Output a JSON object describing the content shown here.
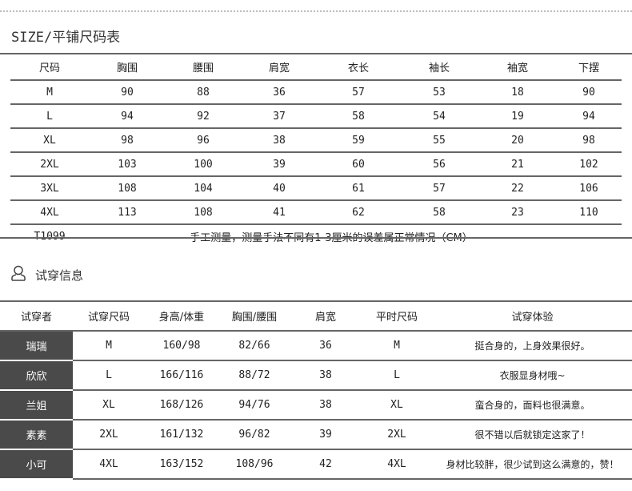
{
  "size_section": {
    "title": "SIZE/平铺尺码表",
    "headers": [
      "尺码",
      "胸围",
      "腰围",
      "肩宽",
      "衣长",
      "袖长",
      "袖宽",
      "下摆"
    ],
    "rows": [
      [
        "M",
        "90",
        "88",
        "36",
        "57",
        "53",
        "18",
        "90"
      ],
      [
        "L",
        "94",
        "92",
        "37",
        "58",
        "54",
        "19",
        "94"
      ],
      [
        "XL",
        "98",
        "96",
        "38",
        "59",
        "55",
        "20",
        "98"
      ],
      [
        "2XL",
        "103",
        "100",
        "39",
        "60",
        "56",
        "21",
        "102"
      ],
      [
        "3XL",
        "108",
        "104",
        "40",
        "61",
        "57",
        "22",
        "106"
      ],
      [
        "4XL",
        "113",
        "108",
        "41",
        "62",
        "58",
        "23",
        "110"
      ]
    ],
    "footer_code": "T1099",
    "footer_note": "手工测量，测量手法不同有1-3厘米的误差属正常情况（CM）"
  },
  "fit_section": {
    "title": "试穿信息",
    "icon": "user-icon",
    "headers": [
      "试穿者",
      "试穿尺码",
      "身高/体重",
      "胸围/腰围",
      "肩宽",
      "平时尺码",
      "试穿体验"
    ],
    "rows": [
      [
        "瑞瑞",
        "M",
        "160/98",
        "82/66",
        "36",
        "M",
        "挺合身的，上身效果很好。"
      ],
      [
        "欣欣",
        "L",
        "166/116",
        "88/72",
        "38",
        "L",
        "衣服显身材哦~"
      ],
      [
        "兰姐",
        "XL",
        "168/126",
        "94/76",
        "38",
        "XL",
        "蛮合身的，面料也很满意。"
      ],
      [
        "素素",
        "2XL",
        "161/132",
        "96/82",
        "39",
        "2XL",
        "很不错以后就锁定这家了！"
      ],
      [
        "小可",
        "4XL",
        "163/152",
        "108/96",
        "42",
        "4XL",
        "身材比较胖，很少试到这么满意的，赞！"
      ]
    ]
  }
}
